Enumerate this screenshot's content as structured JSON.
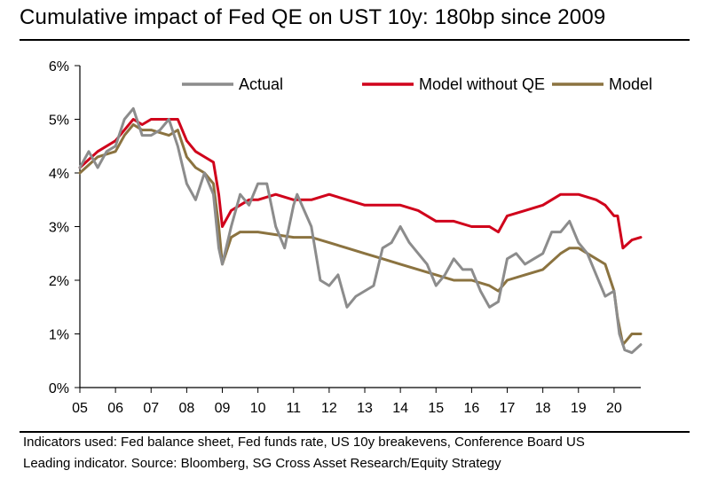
{
  "title": "Cumulative impact of Fed QE on UST 10y: 180bp since 2009",
  "footnote": {
    "line1": "Indicators used: Fed balance sheet, Fed funds rate, US 10y breakevens, Conference Board US",
    "line2": "Leading indicator. Source: Bloomberg, SG Cross Asset Research/Equity Strategy"
  },
  "chart_data": {
    "type": "line",
    "title": "Cumulative impact of Fed QE on UST 10y: 180bp since 2009",
    "xlabel": "",
    "ylabel": "",
    "xlim": [
      2005,
      2020.75
    ],
    "ylim": [
      0,
      6
    ],
    "x_tick_values": [
      2005,
      2006,
      2007,
      2008,
      2009,
      2010,
      2011,
      2012,
      2013,
      2014,
      2015,
      2016,
      2017,
      2018,
      2019,
      2020
    ],
    "x_tick_labels": [
      "05",
      "06",
      "07",
      "08",
      "09",
      "10",
      "11",
      "12",
      "13",
      "14",
      "15",
      "16",
      "17",
      "18",
      "19",
      "20"
    ],
    "y_tick_values": [
      0,
      1,
      2,
      3,
      4,
      5,
      6
    ],
    "y_tick_labels": [
      "0%",
      "1%",
      "2%",
      "3%",
      "4%",
      "5%",
      "6%"
    ],
    "legend_position": "top",
    "series": [
      {
        "name": "Actual",
        "color": "#8c8c8c",
        "x": [
          2005,
          2005.25,
          2005.5,
          2005.75,
          2006,
          2006.25,
          2006.5,
          2006.75,
          2007,
          2007.25,
          2007.5,
          2007.75,
          2008,
          2008.25,
          2008.5,
          2008.75,
          2008.9,
          2009,
          2009.25,
          2009.5,
          2009.75,
          2010,
          2010.25,
          2010.5,
          2010.75,
          2011,
          2011.1,
          2011.3,
          2011.5,
          2011.75,
          2012,
          2012.25,
          2012.5,
          2012.75,
          2013,
          2013.25,
          2013.5,
          2013.75,
          2014,
          2014.25,
          2014.5,
          2014.75,
          2015,
          2015.25,
          2015.5,
          2015.75,
          2016,
          2016.25,
          2016.5,
          2016.75,
          2017,
          2017.25,
          2017.5,
          2017.75,
          2018,
          2018.25,
          2018.5,
          2018.75,
          2019,
          2019.25,
          2019.5,
          2019.75,
          2020,
          2020.15,
          2020.3,
          2020.5,
          2020.75
        ],
        "values": [
          4.1,
          4.4,
          4.1,
          4.4,
          4.5,
          5.0,
          5.2,
          4.7,
          4.7,
          4.8,
          5.0,
          4.5,
          3.8,
          3.5,
          4.0,
          3.6,
          2.6,
          2.3,
          3.0,
          3.6,
          3.4,
          3.8,
          3.8,
          3.0,
          2.6,
          3.4,
          3.6,
          3.3,
          3.0,
          2.0,
          1.9,
          2.1,
          1.5,
          1.7,
          1.8,
          1.9,
          2.6,
          2.7,
          3.0,
          2.7,
          2.5,
          2.3,
          1.9,
          2.1,
          2.4,
          2.2,
          2.2,
          1.8,
          1.5,
          1.6,
          2.4,
          2.5,
          2.3,
          2.4,
          2.5,
          2.9,
          2.9,
          3.1,
          2.7,
          2.5,
          2.1,
          1.7,
          1.8,
          1.0,
          0.7,
          0.65,
          0.8
        ]
      },
      {
        "name": "Model without QE",
        "color": "#d0021b",
        "x": [
          2005,
          2005.5,
          2006,
          2006.25,
          2006.5,
          2006.75,
          2007,
          2007.5,
          2007.75,
          2008,
          2008.25,
          2008.5,
          2008.75,
          2008.9,
          2009,
          2009.25,
          2009.5,
          2009.75,
          2010,
          2010.5,
          2011,
          2011.5,
          2012,
          2012.5,
          2013,
          2013.5,
          2014,
          2014.5,
          2015,
          2015.5,
          2016,
          2016.5,
          2016.75,
          2017,
          2017.5,
          2018,
          2018.5,
          2018.75,
          2019,
          2019.5,
          2019.75,
          2020,
          2020.1,
          2020.25,
          2020.5,
          2020.75
        ],
        "values": [
          4.1,
          4.4,
          4.6,
          4.8,
          5.0,
          4.9,
          5.0,
          5.0,
          5.0,
          4.6,
          4.4,
          4.3,
          4.2,
          3.6,
          3.0,
          3.3,
          3.4,
          3.5,
          3.5,
          3.6,
          3.5,
          3.5,
          3.6,
          3.5,
          3.4,
          3.4,
          3.4,
          3.3,
          3.1,
          3.1,
          3.0,
          3.0,
          2.9,
          3.2,
          3.3,
          3.4,
          3.6,
          3.6,
          3.6,
          3.5,
          3.4,
          3.2,
          3.2,
          2.6,
          2.75,
          2.8
        ]
      },
      {
        "name": "Model",
        "color": "#8b7340",
        "x": [
          2005,
          2005.5,
          2006,
          2006.25,
          2006.5,
          2006.75,
          2007,
          2007.5,
          2007.75,
          2008,
          2008.25,
          2008.5,
          2008.75,
          2008.9,
          2009,
          2009.25,
          2009.5,
          2009.75,
          2010,
          2010.5,
          2011,
          2011.5,
          2012,
          2012.5,
          2013,
          2013.5,
          2014,
          2014.5,
          2015,
          2015.5,
          2016,
          2016.5,
          2016.75,
          2017,
          2017.5,
          2018,
          2018.5,
          2018.75,
          2019,
          2019.5,
          2019.75,
          2020,
          2020.1,
          2020.25,
          2020.5,
          2020.75
        ],
        "values": [
          4.0,
          4.3,
          4.4,
          4.7,
          4.9,
          4.8,
          4.8,
          4.7,
          4.8,
          4.3,
          4.1,
          4.0,
          3.8,
          3.0,
          2.3,
          2.8,
          2.9,
          2.9,
          2.9,
          2.85,
          2.8,
          2.8,
          2.7,
          2.6,
          2.5,
          2.4,
          2.3,
          2.2,
          2.1,
          2.0,
          2.0,
          1.9,
          1.8,
          2.0,
          2.1,
          2.2,
          2.5,
          2.6,
          2.6,
          2.4,
          2.3,
          1.8,
          1.3,
          0.8,
          1.0,
          1.0
        ]
      }
    ]
  }
}
